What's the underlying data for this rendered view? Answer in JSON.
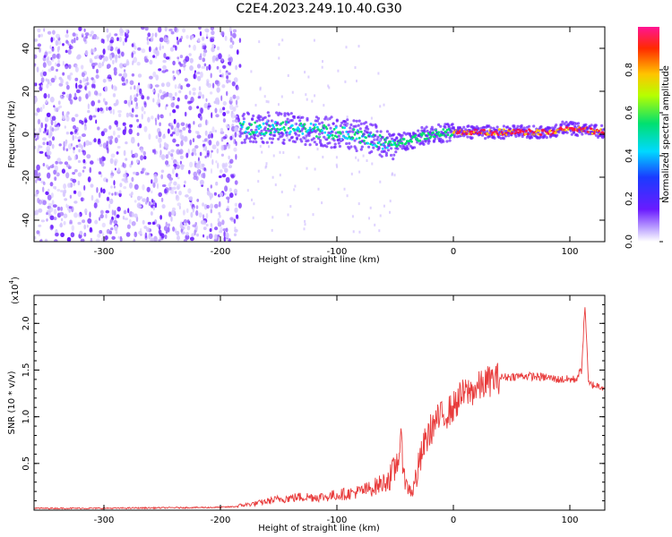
{
  "title": "C2E4.2023.249.10.40.G30",
  "colors": {
    "snr_line": "#e83b3b",
    "axis": "#000000",
    "ridge_core": "#ff1744",
    "ridge_edge": "#00c853",
    "scatter": "#6a1bff"
  },
  "chart_data": [
    {
      "type": "heatmap",
      "panel": "top",
      "title": "C2E4.2023.249.10.40.G30",
      "xlabel": "Height of straight line (km)",
      "ylabel": "Frequency (Hz)",
      "xlim": [
        -360,
        130
      ],
      "ylim": [
        -50,
        50
      ],
      "xticks": [
        -300,
        -200,
        -100,
        0,
        100
      ],
      "yticks": [
        -40,
        -20,
        0,
        20,
        40
      ],
      "noise_region_x": [
        -360,
        -183
      ],
      "ridge_center_hz": [
        {
          "x": -183,
          "y": 3
        },
        {
          "x": -150,
          "y": 3
        },
        {
          "x": -120,
          "y": 2
        },
        {
          "x": -90,
          "y": 0
        },
        {
          "x": -70,
          "y": -2
        },
        {
          "x": -55,
          "y": -5
        },
        {
          "x": -40,
          "y": -3
        },
        {
          "x": -20,
          "y": 0
        },
        {
          "x": 0,
          "y": 1
        },
        {
          "x": 50,
          "y": 1
        },
        {
          "x": 85,
          "y": 1
        },
        {
          "x": 95,
          "y": 3
        },
        {
          "x": 130,
          "y": 1
        }
      ],
      "colorbar": {
        "label": "Normalized spectral amplitude",
        "range": [
          0,
          1
        ],
        "ticks": [
          "0.0",
          "0.2",
          "0.4",
          "0.6",
          "0.8"
        ]
      }
    },
    {
      "type": "line",
      "panel": "bottom",
      "xlabel": "Height of straight line (km)",
      "ylabel": "SNR (10 * v/v)",
      "y_multiplier": "(x10",
      "y_multiplier_exp": "4",
      "xlim": [
        -360,
        130
      ],
      "ylim": [
        0,
        2.3
      ],
      "xticks": [
        -300,
        -200,
        -100,
        0,
        100
      ],
      "yticks": [
        0.5,
        1.0,
        1.5,
        2.0
      ],
      "yticklabels": [
        "0.5",
        "1.0",
        "1.5",
        "2.0"
      ],
      "series": [
        {
          "values_x": [
            -360,
            -300,
            -250,
            -200,
            -185,
            -170,
            -150,
            -130,
            -110,
            -100,
            -90,
            -80,
            -70,
            -60,
            -55,
            -50,
            -45,
            -40,
            -35,
            -30,
            -25,
            -20,
            -15,
            -10,
            -5,
            0,
            5,
            10,
            20,
            30,
            40,
            60,
            80,
            90,
            100,
            105,
            110,
            113,
            116,
            120,
            130
          ],
          "values_y": [
            0.02,
            0.02,
            0.025,
            0.03,
            0.04,
            0.06,
            0.1,
            0.12,
            0.12,
            0.14,
            0.15,
            0.17,
            0.2,
            0.25,
            0.3,
            0.45,
            0.7,
            0.25,
            0.2,
            0.45,
            0.7,
            0.85,
            0.95,
            1.0,
            1.05,
            1.1,
            1.2,
            1.25,
            1.3,
            1.38,
            1.42,
            1.44,
            1.42,
            1.4,
            1.4,
            1.4,
            1.5,
            2.2,
            1.35,
            1.34,
            1.32
          ]
        }
      ]
    }
  ]
}
